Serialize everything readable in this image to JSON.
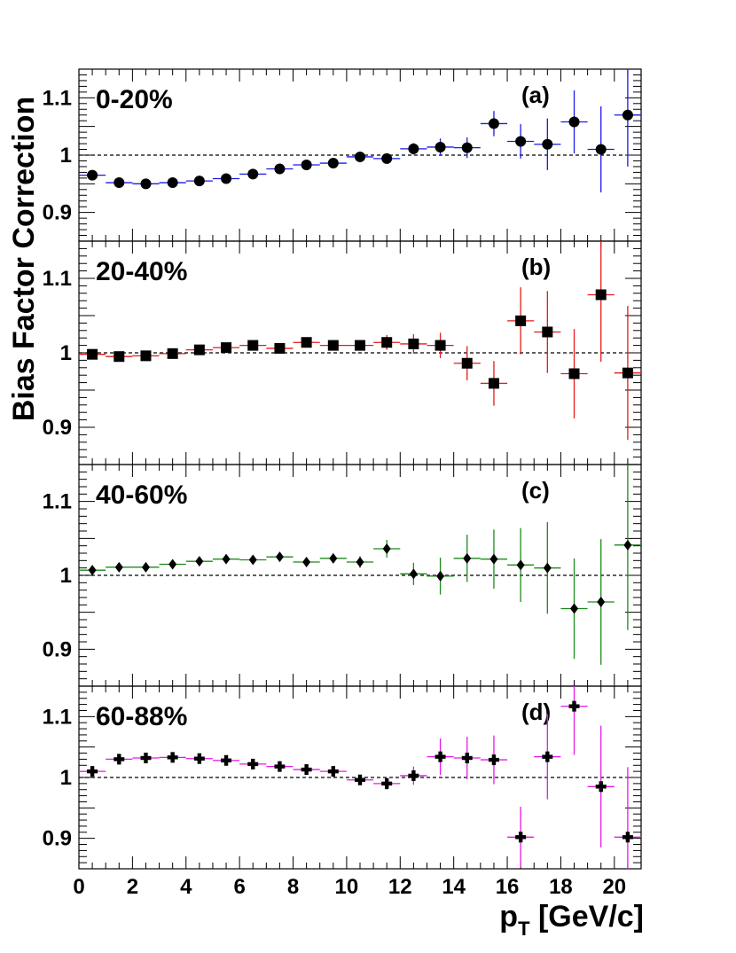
{
  "figure": {
    "ylabel": "Bias Factor  Correction",
    "xlabel_main": "p",
    "xlabel_sub": "T",
    "xlabel_rest": " [GeV/c]",
    "reference_line": 1
  },
  "chart_data": [
    {
      "type": "scatter",
      "panel_tag": "(a)",
      "centrality": "0-20%",
      "marker": "circle",
      "error_color": "#1a1ae6",
      "x": [
        0.5,
        1.5,
        2.5,
        3.5,
        4.5,
        5.5,
        6.5,
        7.5,
        8.5,
        9.5,
        10.5,
        11.5,
        12.5,
        13.5,
        14.5,
        15.5,
        16.5,
        17.5,
        18.5,
        19.5,
        20.5
      ],
      "y": [
        0.965,
        0.952,
        0.95,
        0.952,
        0.955,
        0.959,
        0.967,
        0.976,
        0.983,
        0.986,
        0.997,
        0.994,
        1.011,
        1.014,
        1.013,
        1.055,
        1.024,
        1.019,
        1.058,
        1.01,
        1.07
      ],
      "yerr": [
        0.004,
        0.003,
        0.003,
        0.003,
        0.003,
        0.003,
        0.003,
        0.004,
        0.004,
        0.005,
        0.006,
        0.007,
        0.01,
        0.015,
        0.018,
        0.022,
        0.03,
        0.045,
        0.055,
        0.075,
        0.09
      ],
      "xlim": [
        0,
        21
      ],
      "ylim": [
        0.85,
        1.15
      ],
      "yticks": [
        "0.9",
        "1",
        "1.1"
      ],
      "xticks": [
        "0",
        "2",
        "4",
        "6",
        "8",
        "10",
        "12",
        "14",
        "16",
        "18",
        "20"
      ]
    },
    {
      "type": "scatter",
      "panel_tag": "(b)",
      "centrality": "20-40%",
      "marker": "square",
      "error_color": "#e61a1a",
      "x": [
        0.5,
        1.5,
        2.5,
        3.5,
        4.5,
        5.5,
        6.5,
        7.5,
        8.5,
        9.5,
        10.5,
        11.5,
        12.5,
        13.5,
        14.5,
        15.5,
        16.5,
        17.5,
        18.5,
        19.5,
        20.5
      ],
      "y": [
        0.998,
        0.995,
        0.996,
        0.999,
        1.004,
        1.007,
        1.01,
        1.006,
        1.014,
        1.01,
        1.01,
        1.014,
        1.012,
        1.01,
        0.986,
        0.959,
        1.043,
        1.028,
        0.972,
        1.078,
        0.973
      ],
      "yerr": [
        0.003,
        0.003,
        0.003,
        0.003,
        0.003,
        0.004,
        0.004,
        0.004,
        0.005,
        0.006,
        0.007,
        0.01,
        0.013,
        0.017,
        0.023,
        0.03,
        0.045,
        0.055,
        0.06,
        0.09,
        0.09
      ],
      "xlim": [
        0,
        21
      ],
      "ylim": [
        0.85,
        1.15
      ],
      "yticks": [
        "0.9",
        "1",
        "1.1"
      ],
      "xticks": [
        "0",
        "2",
        "4",
        "6",
        "8",
        "10",
        "12",
        "14",
        "16",
        "18",
        "20"
      ]
    },
    {
      "type": "scatter",
      "panel_tag": "(c)",
      "centrality": "40-60%",
      "marker": "diamond",
      "error_color": "#1a8c1a",
      "x": [
        0.5,
        1.5,
        2.5,
        3.5,
        4.5,
        5.5,
        6.5,
        7.5,
        8.5,
        9.5,
        10.5,
        11.5,
        12.5,
        13.5,
        14.5,
        15.5,
        16.5,
        17.5,
        18.5,
        19.5,
        20.5
      ],
      "y": [
        1.007,
        1.011,
        1.011,
        1.015,
        1.019,
        1.022,
        1.021,
        1.025,
        1.018,
        1.023,
        1.018,
        1.036,
        1.002,
        0.999,
        1.023,
        1.022,
        1.014,
        1.01,
        0.955,
        0.964,
        1.041
      ],
      "yerr": [
        0.004,
        0.004,
        0.004,
        0.004,
        0.004,
        0.004,
        0.005,
        0.005,
        0.005,
        0.006,
        0.008,
        0.012,
        0.015,
        0.025,
        0.032,
        0.04,
        0.05,
        0.062,
        0.068,
        0.085,
        0.115
      ],
      "xlim": [
        0,
        21
      ],
      "ylim": [
        0.85,
        1.15
      ],
      "yticks": [
        "0.9",
        "1",
        "1.1"
      ],
      "xticks": [
        "0",
        "2",
        "4",
        "6",
        "8",
        "10",
        "12",
        "14",
        "16",
        "18",
        "20"
      ]
    },
    {
      "type": "scatter",
      "panel_tag": "(d)",
      "centrality": "60-88%",
      "marker": "cross",
      "error_color": "#e619e6",
      "x": [
        0.5,
        1.5,
        2.5,
        3.5,
        4.5,
        5.5,
        6.5,
        7.5,
        8.5,
        9.5,
        10.5,
        11.5,
        12.5,
        13.5,
        14.5,
        15.5,
        16.5,
        17.5,
        18.5,
        19.5,
        20.5
      ],
      "y": [
        1.01,
        1.03,
        1.032,
        1.033,
        1.031,
        1.028,
        1.022,
        1.018,
        1.013,
        1.01,
        0.996,
        0.99,
        1.003,
        1.034,
        1.032,
        1.029,
        0.902,
        1.034,
        1.117,
        0.985,
        0.902
      ],
      "yerr": [
        0.004,
        0.004,
        0.004,
        0.004,
        0.004,
        0.004,
        0.005,
        0.005,
        0.006,
        0.007,
        0.008,
        0.01,
        0.015,
        0.03,
        0.035,
        0.04,
        0.05,
        0.07,
        0.08,
        0.1,
        0.115
      ],
      "xlim": [
        0,
        21
      ],
      "ylim": [
        0.85,
        1.15
      ],
      "yticks": [
        "0.9",
        "1",
        "1.1"
      ],
      "xticks": [
        "0",
        "2",
        "4",
        "6",
        "8",
        "10",
        "12",
        "14",
        "16",
        "18",
        "20"
      ]
    }
  ]
}
